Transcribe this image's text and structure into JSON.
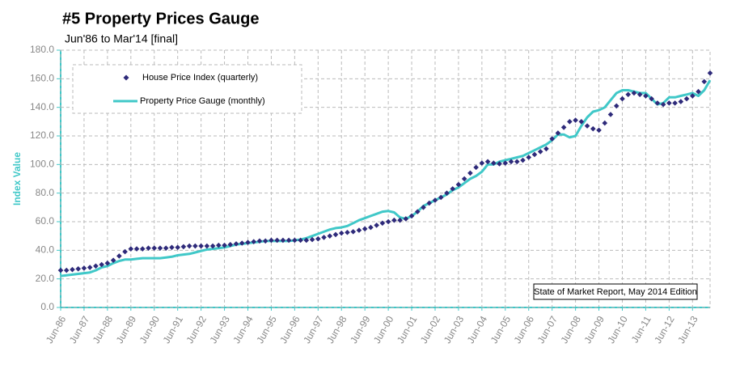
{
  "chart_data": {
    "type": "scatter-line",
    "title": "#5 Property Prices Gauge",
    "subtitle": "Jun'86 to Mar'14 [final]",
    "y_label": "Index Value",
    "annotation": "State of Market Report, May 2014 Edition",
    "categories": [
      "Jun-86",
      null,
      null,
      null,
      "Jun-87",
      null,
      null,
      null,
      "Jun-88",
      null,
      null,
      null,
      "Jun-89",
      null,
      null,
      null,
      "Jun-90",
      null,
      null,
      null,
      "Jun-91",
      null,
      null,
      null,
      "Jun-92",
      null,
      null,
      null,
      "Jun-93",
      null,
      null,
      null,
      "Jun-94",
      null,
      null,
      null,
      "Jun-95",
      null,
      null,
      null,
      "Jun-96",
      null,
      null,
      null,
      "Jun-97",
      null,
      null,
      null,
      "Jun-98",
      null,
      null,
      null,
      "Jun-99",
      null,
      null,
      null,
      "Jun-00",
      null,
      null,
      null,
      "Jun-01",
      null,
      null,
      null,
      "Jun-02",
      null,
      null,
      null,
      "Jun-03",
      null,
      null,
      null,
      "Jun-04",
      null,
      null,
      null,
      "Jun-05",
      null,
      null,
      null,
      "Jun-06",
      null,
      null,
      null,
      "Jun-07",
      null,
      null,
      null,
      "Jun-08",
      null,
      null,
      null,
      "Jun-09",
      null,
      null,
      null,
      "Jun-10",
      null,
      null,
      null,
      "Jun-11",
      null,
      null,
      null,
      "Jun-12",
      null,
      null,
      null,
      "Jun-13",
      null,
      null,
      null
    ],
    "series": [
      {
        "name": "House Price Index (quarterly)",
        "color": "#2e2a7a",
        "marker": "diamond",
        "values": [
          26,
          26,
          26.5,
          27,
          27.5,
          28,
          29,
          30,
          31,
          33,
          36,
          39,
          41,
          41,
          41,
          41.5,
          41.5,
          41.5,
          41.5,
          42,
          42,
          42.5,
          43,
          43,
          43,
          43,
          43,
          43.5,
          43.5,
          44,
          44.5,
          45,
          45.5,
          46,
          46.5,
          46.5,
          47,
          47,
          47,
          47,
          47,
          47,
          47,
          47.5,
          48,
          49,
          50,
          51,
          52,
          52.5,
          53,
          54,
          55,
          56,
          57.5,
          59,
          60,
          61,
          61,
          62,
          64,
          67,
          70,
          73,
          75,
          77,
          80,
          83,
          86,
          90,
          94,
          98,
          101,
          102,
          101,
          100.5,
          101,
          102,
          102,
          103,
          105,
          107,
          109,
          111,
          118,
          122,
          126,
          130,
          131,
          130,
          127,
          125,
          124,
          129,
          135,
          141,
          146,
          149,
          150,
          149,
          148,
          146,
          143,
          142,
          143,
          143,
          144,
          146,
          148,
          151,
          158,
          164
        ]
      },
      {
        "name": "Property Price Gauge (monthly)",
        "color": "#40c8c8",
        "marker": "line",
        "values": [
          22,
          22.5,
          23,
          23.5,
          24,
          24.5,
          26,
          28,
          29,
          31,
          32.5,
          33.5,
          33.5,
          34,
          34.5,
          34.5,
          34.5,
          34.5,
          35,
          35.5,
          36.5,
          37,
          37.5,
          38.5,
          39.5,
          40.5,
          41,
          41.5,
          42,
          43,
          44,
          44.5,
          45,
          45.5,
          46,
          46.5,
          46.5,
          46.5,
          46.5,
          46.5,
          47,
          47.5,
          48.5,
          50,
          51.5,
          53,
          54.5,
          55.5,
          56,
          57,
          59,
          61,
          62.5,
          64,
          65.5,
          67,
          67.5,
          66.5,
          63,
          62,
          64,
          67,
          71,
          73,
          75,
          77,
          79,
          82,
          84,
          87,
          90,
          92,
          95,
          100,
          100,
          102,
          103,
          104,
          105,
          106,
          108,
          110,
          112,
          114,
          117,
          121,
          121,
          119,
          120,
          127,
          133,
          137,
          138,
          140,
          145,
          150,
          152,
          152,
          151,
          150,
          150,
          146,
          142,
          143,
          147,
          147,
          148,
          149,
          150,
          148,
          152,
          159
        ]
      }
    ],
    "ylim": [
      0,
      180
    ],
    "yticks": [
      {
        "value": 0,
        "label": "0.0"
      },
      {
        "value": 20,
        "label": "20.0"
      },
      {
        "value": 40,
        "label": "40.0"
      },
      {
        "value": 60,
        "label": "60.0"
      },
      {
        "value": 80,
        "label": "80.0"
      },
      {
        "value": 100,
        "label": "100.0"
      },
      {
        "value": 120,
        "label": "120.0"
      },
      {
        "value": 140,
        "label": "140.0"
      },
      {
        "value": 160,
        "label": "160.0"
      },
      {
        "value": 180,
        "label": "180.0"
      }
    ],
    "grid": true,
    "legend": "upper left"
  }
}
